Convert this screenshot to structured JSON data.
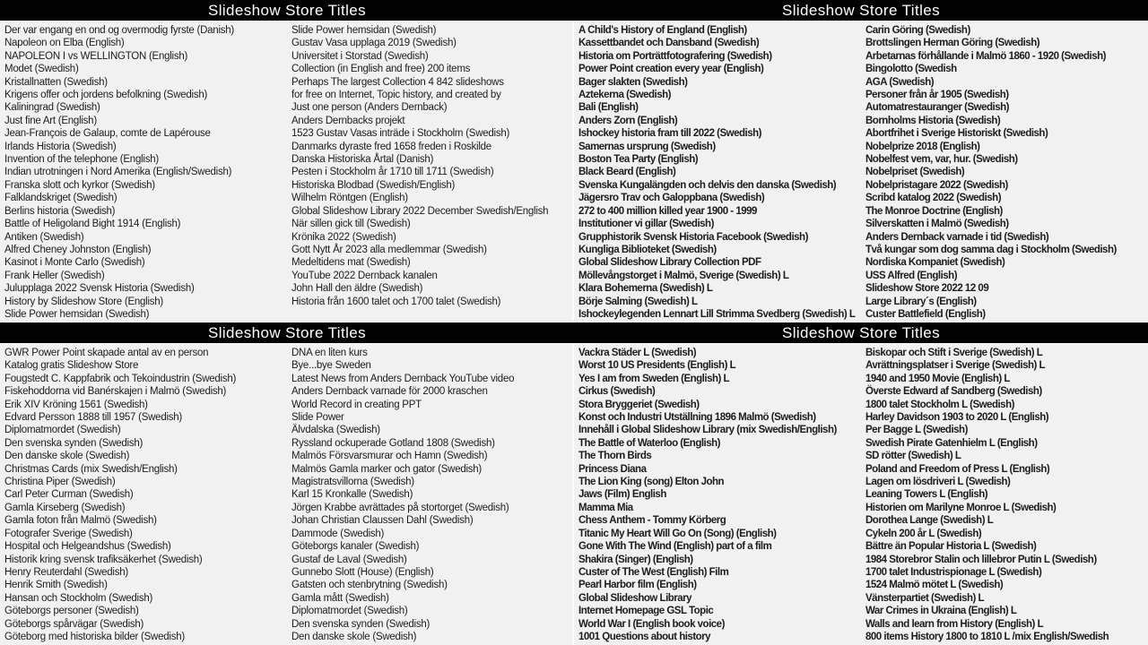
{
  "colors": {
    "header_bg": "#030303",
    "header_text": "#ffffff",
    "slide_bg": "#f1f1f1",
    "body_text": "#1c1c1c"
  },
  "slides": [
    {
      "title": "Slideshow Store Titles",
      "columns": [
        [
          "Der var engang en ond og overmodig fyrste (Danish)",
          "Napoleon on Elba (English)",
          "NAPOLEON I vs WELLINGTON (English)",
          "Modet (Swedish)",
          "Kristallnatten (Swedish)",
          "Krigens offer och jordens befolkning (Swedish)",
          "Kaliningrad (Swedish)",
          "Just fine Art (English)",
          "Jean-François de Galaup, comte de Lapérouse",
          "Irlands Historia (Swedish)",
          "Invention of the telephone (English)",
          "Indian utrotningen i Nord Amerika (English/Swedish)",
          "Franska slott och kyrkor (Swedish)",
          "Falklandskriget (Swedish)",
          "Berlins historia (Swedish)",
          "Battle of Heligoland Bight 1914 (English)",
          "Antiken (Swedish)",
          "Alfred Cheney Johnston (English)",
          "Kasinot i Monte Carlo (Swedish)",
          "Frank Heller (Swedish)",
          "Julupplaga 2022 Svensk Historia (Swedish)",
          "History by Slideshow Store (English)",
          "Slide Power hemsidan (Swedish)"
        ],
        [
          "Slide Power hemsidan (Swedish)",
          "Gustav Vasa upplaga 2019 (Swedish)",
          "Universitet i Storstad (Swedish)",
          "Collection (in English and free) 200 items",
          "Perhaps The largest Collection 4 842 slideshows",
          "for free on Internet, Topic history, and created by",
          "Just one person (Anders Dernback)",
          "Anders Dernbacks projekt",
          "1523 Gustav Vasas inträde i Stockholm (Swedish)",
          "Danmarks dyraste fred 1658 freden i Roskilde",
          "Danska Historiska Årtal (Danish)",
          "Pesten i Stockholm år 1710 till 1711 (Swedish)",
          "Historiska Blodbad (Swedish/English)",
          "Wilhelm Röntgen (English)",
          "Global Slideshow Library 2022 December Swedish/English",
          "När sillen gick till (Swedish)",
          "Krönika 2022 (Swedish)",
          "Gott Nytt År 2023 alla medlemmar (Swedish)",
          "Medeltidens mat (Swedish)",
          "YouTube 2022 Dernback kanalen",
          "John Hall den äldre (Swedish)",
          "Historia från 1600 talet och 1700 talet (Swedish)"
        ]
      ]
    },
    {
      "title": "Slideshow Store Titles",
      "columns": [
        [
          "A Child's History of England (English)",
          "Kassettbandet och Dansband (Swedish)",
          "Historia om Porträttfotografering (Swedish)",
          "Power Point creation every year (English)",
          "Bager slakten (Swedish)",
          "Aztekerna (Swedish)",
          "Bali (English)",
          "Anders Zorn (English)",
          "Ishockey historia fram till 2022 (Swedish)",
          "Samernas ursprung (Swedish)",
          "Boston Tea Party (English)",
          "Black Beard (English)",
          "Svenska Kungalängden och delvis den danska (Swedish)",
          "Jägersro Trav och Galoppbana (Swedish)",
          "272 to 400 million killed year 1900 - 1999",
          "Institutioner vi gillar (Swedish)",
          "Grupphistorik Svensk Historia Facebook (Swedish)",
          "Kungliga Biblioteket (Swedish)",
          "Global Slideshow Library Collection PDF",
          "Möllevångstorget i Malmö, Sverige (Swedish) L",
          "Klara Bohemerna (Swedish) L",
          "Börje Salming (Swedish) L",
          "Ishockeylegenden Lennart Lill Strimma Svedberg (Swedish) L"
        ],
        [
          "Carin Göring (Swedish)",
          "Brottslingen Herman Göring (Swedish)",
          "Arbetarnas förhållande i Malmö 1860 - 1920 (Swedish)",
          "Bingolotto (Swedish",
          "AGA (Swedish)",
          "Personer från år 1905 (Swedish)",
          "Automatrestauranger (Swedish)",
          "Bornholms Historia (Swedish)",
          "Abortfrihet i Sverige Historiskt (Swedish)",
          "Nobelprize 2018 (English)",
          "Nobelfest vem, var, hur. (Swedish)",
          "Nobelpriset (Swedish)",
          "Nobelpristagare 2022 (Swedish)",
          "Scribd katalog 2022 (Swedish)",
          "The Monroe Doctrine (English)",
          "Silverskatten i Malmö (Swedish)",
          "Anders Dernback varnade i tid (Swedish)",
          "Två kungar som dog samma dag i Stockholm (Swedish)",
          "Nordiska Kompaniet (Swedish)",
          "USS Alfred (English)",
          "Slideshow Store 2022 12 09",
          "Large Library´s (English)",
          "Custer Battlefield (English)"
        ]
      ]
    },
    {
      "title": "Slideshow Store Titles",
      "columns": [
        [
          "GWR Power Point skapade antal av en person",
          "Katalog gratis Slideshow Store",
          "Fougstedt C. Kappfabrik och Tekoindustrin (Swedish)",
          "Fiskehoddorna vid Banérskajen i Malmö (Swedish)",
          "Erik XIV Kröning 1561 (Swedish)",
          "Edvard Persson 1888 till 1957 (Swedish)",
          "Diplomatmordet (Swedish)",
          "Den svenska synden (Swedish)",
          "Den danske skole (Swedish)",
          "Christmas Cards (mix Swedish/English)",
          "Christina Piper (Swedish)",
          "Carl Peter Curman (Swedish)",
          "Gamla Kirseberg (Swedish)",
          "Gamla foton från Malmö (Swedish)",
          "Fotografer Sverige (Swedish)",
          "Hospital och Helgeandshus (Swedish)",
          "Historik kring svensk trafiksäkerhet (Swedish)",
          "Henry Reuterdahl (Swedish)",
          "Henrik Smith (Swedish)",
          "Hansan och Stockholm (Swedish)",
          "Göteborgs personer (Swedish)",
          "Göteborgs spårvägar (Swedish)",
          "Göteborg med historiska bilder (Swedish)"
        ],
        [
          "DNA en liten kurs",
          "Bye...bye Sweden",
          "Latest News from Anders Dernback YouTube video",
          "Anders Dernback varnade för 2000 kraschen",
          "World Record in creating PPT",
          "Slide Power",
          "Älvdalska (Swedish)",
          "Ryssland ockuperade Gotland 1808 (Swedish)",
          "Malmös Försvarsmurar och Hamn (Swedish)",
          "Malmös Gamla marker och gator (Swedish)",
          "Magistratsvillorna (Swedish)",
          "Karl 15 Kronkalle (Swedish)",
          "Jörgen Krabbe avrättades på stortorget (Swedish)",
          "Johan Christian Claussen Dahl (Swedish)",
          "Dammode (Swedish)",
          "Göteborgs kanaler (Swedish)",
          "Gustaf de Laval (Swedish)",
          "Gunnebo Slott (House) (English)",
          "Gatsten och stenbrytning (Swedish)",
          "Gamla mått (Swedish)",
          "Diplomatmordet (Swedish)",
          "Den svenska synden (Swedish)",
          "Den danske skole (Swedish)"
        ]
      ]
    },
    {
      "title": "Slideshow Store Titles",
      "columns": [
        [
          "Vackra Städer L (Swedish)",
          "Worst 10 US Presidents (English) L",
          "Yes I am from Sweden (English) L",
          "Cirkus (Swedish)",
          "Stora Bryggeriet (Swedish)",
          "Konst och Industri Utställning 1896 Malmö (Swedish)",
          "Innehåll i Global Slideshow Library (mix Swedish/English)",
          "The Battle of Waterloo (English)",
          "The Thorn Birds",
          "Princess Diana",
          "The Lion King (song) Elton John",
          "Jaws (Film) English",
          "Mamma Mia",
          "Chess Anthem - Tommy Körberg",
          "Titanic My Heart Will Go On (Song) (English)",
          "Gone With The Wind (English) part of a film",
          "Shakira (Singer) (English)",
          "Custer of The West (English) Film",
          "Pearl Harbor film (English)",
          "Global Slideshow Library",
          "Internet Homepage GSL Topic",
          "World War I (English book voice)",
          "1001 Questions about history"
        ],
        [
          "Biskopar och Stift i Sverige (Swedish) L",
          "Avrättningsplatser i Sverige (Swedish) L",
          "1940 and 1950 Movie (English) L",
          "Överste Edward af Sandberg (Swedish)",
          "1800 talet Stockholm L (Swedish)",
          "Harley Davidson 1903 to 2020 L (English)",
          "Per Bagge L (Swedish)",
          "Swedish Pirate Gatenhielm L (English)",
          "SD rötter (Swedish) L",
          "Poland and Freedom of Press L (English)",
          "Lagen om lösdriveri L (Swedish)",
          "Leaning Towers L (English)",
          "Historien om Marilyne Monroe L (Swedish)",
          "Dorothea Lange (Swedish) L",
          "Cykeln 200 år L (Swedish)",
          "Bättre än Popular Historia L (Swedish)",
          "1984 Storebror Stalin och lillebror Putin L (Swedish)",
          "1700 talet Industrispionage L (Swedish)",
          "1524 Malmö mötet L (Swedish)",
          "Vänsterpartiet (Swedish) L",
          "War Crimes in Ukraina (English) L",
          "Walls and learn from History (English) L",
          "800 items History 1800 to 1810 L /mix English/Swedish"
        ]
      ]
    }
  ]
}
